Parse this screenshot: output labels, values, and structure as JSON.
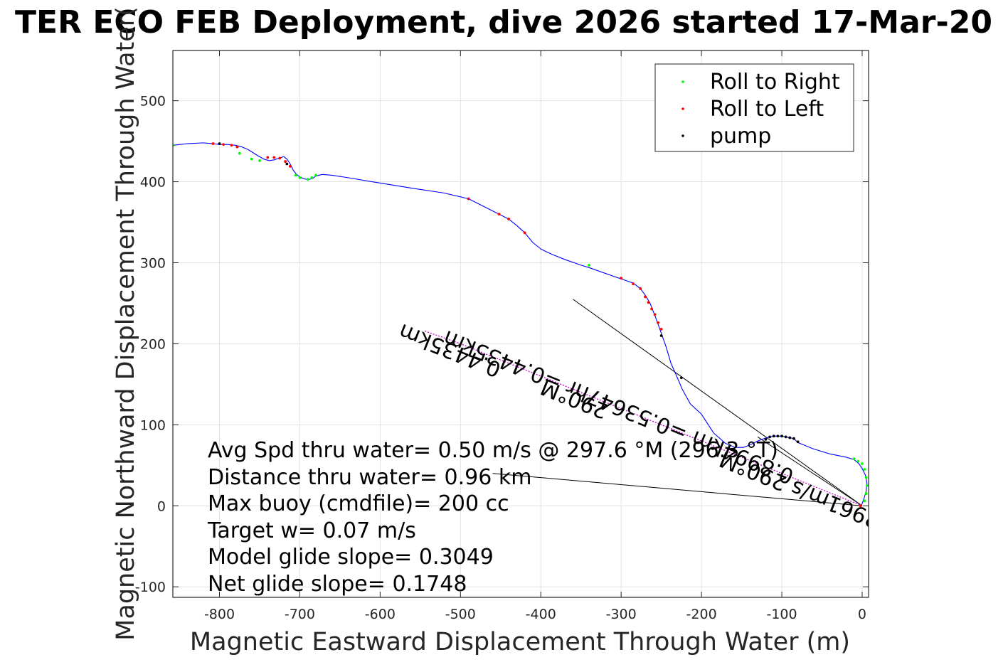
{
  "chart_data": {
    "type": "line",
    "title": "TER ECO FEB Deployment, dive 2026 started 17-Mar-20",
    "xlabel": "Magnetic Eastward Displacement Through Water (m)",
    "ylabel": "Magnetic Northward Displacement Through Water(",
    "xlim": [
      -858,
      8
    ],
    "ylim": [
      -113,
      562
    ],
    "xticks": [
      -800,
      -700,
      -600,
      -500,
      -400,
      -300,
      -200,
      -100,
      0
    ],
    "yticks": [
      -100,
      0,
      100,
      200,
      300,
      400,
      500
    ],
    "grid": true,
    "legend": {
      "placement": "top-right",
      "entries": [
        {
          "label": "Roll to Right",
          "color": "#00ff00"
        },
        {
          "label": "Roll to Left",
          "color": "#ff0000"
        },
        {
          "label": "pump",
          "color": "#000000"
        }
      ]
    },
    "series": [
      {
        "name": "",
        "color": "#0000ff",
        "x": [
          -858,
          -840,
          -820,
          -808,
          -800,
          -790,
          -780,
          -772,
          -765,
          -760,
          -752,
          -745,
          -738,
          -732,
          -726,
          -720,
          -716,
          -712,
          -708,
          -704,
          -700,
          -696,
          -692,
          -688,
          -684,
          -680,
          -672,
          -660,
          -640,
          -610,
          -560,
          -520,
          -490,
          -470,
          -452,
          -440,
          -430,
          -420,
          -410,
          -400,
          -392,
          -385,
          -370,
          -350,
          -340,
          -320,
          -300,
          -285,
          -276,
          -270,
          -264,
          -258,
          -254,
          -250,
          -244,
          -238,
          -230,
          -224,
          -214,
          -200,
          -185,
          -170,
          -158,
          -148,
          -140,
          -130,
          -122,
          -115,
          -110,
          -105,
          -100,
          -95,
          -90,
          -85,
          -80,
          -60,
          -40,
          -20,
          -10,
          -4,
          0,
          4,
          6,
          5,
          2,
          -1
        ],
        "y": [
          445,
          447,
          448,
          447,
          446,
          446,
          445,
          443,
          440,
          437,
          432,
          428,
          426,
          427,
          429,
          431,
          428,
          422,
          414,
          409,
          406,
          404,
          403,
          403,
          404,
          407,
          409,
          408,
          405,
          400,
          392,
          386,
          379,
          369,
          360,
          354,
          346,
          337,
          325,
          317,
          313,
          310,
          304,
          297,
          294,
          287,
          280,
          275,
          268,
          260,
          250,
          235,
          224,
          213,
          196,
          176,
          158,
          144,
          126,
          113,
          90,
          77,
          72,
          72,
          75,
          80,
          83,
          85,
          86,
          86,
          86,
          85,
          84,
          83,
          78,
          70,
          64,
          60,
          57,
          52,
          46,
          38,
          28,
          18,
          8,
          0
        ]
      }
    ],
    "roll_right_points": [
      [
        -858,
        445
      ],
      [
        -775,
        435
      ],
      [
        -760,
        428
      ],
      [
        -750,
        426
      ],
      [
        -705,
        408
      ],
      [
        -700,
        405
      ],
      [
        -690,
        403
      ],
      [
        -685,
        405
      ],
      [
        -680,
        408
      ],
      [
        -340,
        297
      ],
      [
        -100,
        86
      ],
      [
        -10,
        58
      ],
      [
        -5,
        55
      ],
      [
        0,
        52
      ],
      [
        3,
        45
      ],
      [
        5,
        35
      ],
      [
        6,
        25
      ],
      [
        5,
        15
      ],
      [
        3,
        6
      ],
      [
        -2,
        0
      ]
    ],
    "roll_left_points": [
      [
        -808,
        447
      ],
      [
        -795,
        446
      ],
      [
        -785,
        445
      ],
      [
        -778,
        443
      ],
      [
        -740,
        430
      ],
      [
        -732,
        430
      ],
      [
        -725,
        429
      ],
      [
        -718,
        425
      ],
      [
        -712,
        419
      ],
      [
        -490,
        379
      ],
      [
        -452,
        360
      ],
      [
        -440,
        354
      ],
      [
        -420,
        337
      ],
      [
        -300,
        281
      ],
      [
        -285,
        274
      ],
      [
        -276,
        268
      ],
      [
        -270,
        258
      ],
      [
        -266,
        251
      ],
      [
        -262,
        243
      ],
      [
        -258,
        236
      ],
      [
        -254,
        226
      ],
      [
        -250,
        218
      ],
      [
        -2,
        0
      ]
    ],
    "pump_points": [
      [
        -800,
        447
      ],
      [
        -716,
        422
      ],
      [
        -250,
        210
      ],
      [
        -225,
        158
      ],
      [
        -120,
        82
      ],
      [
        -115,
        85
      ],
      [
        -110,
        86
      ],
      [
        -105,
        86
      ],
      [
        -100,
        86
      ],
      [
        -95,
        85
      ],
      [
        -90,
        84
      ],
      [
        -85,
        83
      ],
      [
        -80,
        79
      ]
    ],
    "reference_lines": [
      {
        "x": [
          0,
          -360
        ],
        "y": [
          0,
          255
        ]
      },
      {
        "x": [
          0,
          -130
        ],
        "y": [
          0,
          85
        ]
      },
      {
        "x": [
          0,
          -460
        ],
        "y": [
          0,
          40
        ]
      }
    ],
    "magenta_track": {
      "x": [
        0,
        -500,
        -545
      ],
      "y": [
        0,
        200,
        216
      ]
    },
    "rotated_annotations": [
      {
        "text": "0.4435km",
        "x": -510,
        "y": 200,
        "angle_deg": 22
      },
      {
        "text": "0.8994km =0.53647hr =0.4435km",
        "x": -300,
        "y": 130,
        "angle_deg": 22
      },
      {
        "text": "290°M",
        "x": -355,
        "y": 140,
        "angle_deg": 22
      },
      {
        "text": "0.22961m/s 290°M",
        "x": -55,
        "y": 20,
        "angle_deg": 22
      }
    ]
  },
  "annotations": [
    "Avg Spd thru water=  0.50 m/s @ 297.6  °M (296.3  °T)",
    "Distance thru water=  0.96 km",
    "Max buoy (cmdfile)= 200 cc",
    "Target w= 0.07 m/s",
    "Model glide slope= 0.3049",
    "Net glide slope= 0.1748"
  ]
}
